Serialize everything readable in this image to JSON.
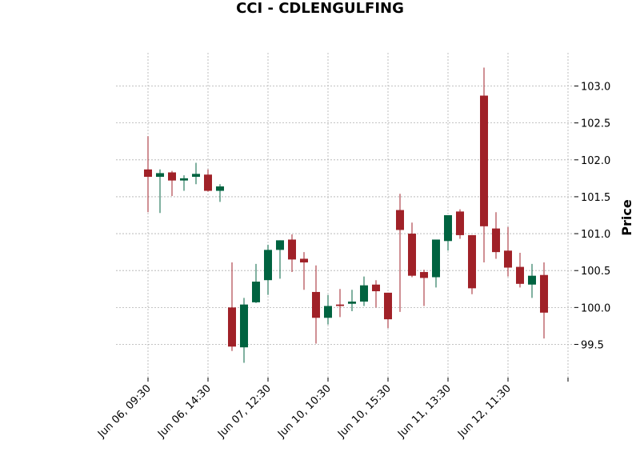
{
  "chart_data": {
    "type": "candlestick",
    "title": "CCI - CDLENGULFING",
    "xlabel": "",
    "ylabel": "Price",
    "ylim": [
      99.05,
      103.45
    ],
    "grid": true,
    "y_ticks": [
      99.5,
      100.0,
      100.5,
      101.0,
      101.5,
      102.0,
      102.5,
      103.0
    ],
    "y_tick_labels": [
      "99.5",
      "100.0",
      "100.5",
      "101.0",
      "101.5",
      "102.0",
      "102.5",
      "103.0"
    ],
    "x_ticks": [
      0,
      5,
      10,
      15,
      20,
      25,
      30,
      35
    ],
    "x_tick_labels": [
      "Jun 06, 09:30",
      "Jun 06, 14:30",
      "Jun 07, 12:30",
      "Jun 10, 10:30",
      "Jun 10, 15:30",
      "Jun 11, 13:30",
      "Jun 12, 11:30",
      ""
    ],
    "colors": {
      "up": "#006340",
      "down": "#a02128"
    },
    "candles": [
      {
        "i": 0,
        "open": 101.87,
        "high": 102.32,
        "low": 101.29,
        "close": 101.77
      },
      {
        "i": 1,
        "open": 101.77,
        "high": 101.87,
        "low": 101.28,
        "close": 101.82
      },
      {
        "i": 2,
        "open": 101.83,
        "high": 101.85,
        "low": 101.51,
        "close": 101.72
      },
      {
        "i": 3,
        "open": 101.72,
        "high": 101.79,
        "low": 101.58,
        "close": 101.75
      },
      {
        "i": 4,
        "open": 101.77,
        "high": 101.96,
        "low": 101.67,
        "close": 101.81
      },
      {
        "i": 5,
        "open": 101.8,
        "high": 101.87,
        "low": 101.57,
        "close": 101.58
      },
      {
        "i": 6,
        "open": 101.58,
        "high": 101.67,
        "low": 101.43,
        "close": 101.64
      },
      {
        "i": 7,
        "open": 100.0,
        "high": 100.61,
        "low": 99.41,
        "close": 99.47
      },
      {
        "i": 8,
        "open": 99.46,
        "high": 100.13,
        "low": 99.25,
        "close": 100.04
      },
      {
        "i": 9,
        "open": 100.07,
        "high": 100.59,
        "low": 100.06,
        "close": 100.35
      },
      {
        "i": 10,
        "open": 100.37,
        "high": 100.85,
        "low": 100.17,
        "close": 100.78
      },
      {
        "i": 11,
        "open": 100.78,
        "high": 100.91,
        "low": 100.39,
        "close": 100.91
      },
      {
        "i": 12,
        "open": 100.92,
        "high": 100.99,
        "low": 100.48,
        "close": 100.65
      },
      {
        "i": 13,
        "open": 100.66,
        "high": 100.75,
        "low": 100.24,
        "close": 100.61
      },
      {
        "i": 14,
        "open": 100.21,
        "high": 100.57,
        "low": 99.51,
        "close": 99.86
      },
      {
        "i": 15,
        "open": 99.86,
        "high": 100.17,
        "low": 99.77,
        "close": 100.02
      },
      {
        "i": 16,
        "open": 100.04,
        "high": 100.25,
        "low": 99.87,
        "close": 100.02
      },
      {
        "i": 17,
        "open": 100.05,
        "high": 100.24,
        "low": 99.95,
        "close": 100.08
      },
      {
        "i": 18,
        "open": 100.08,
        "high": 100.42,
        "low": 100.02,
        "close": 100.3
      },
      {
        "i": 19,
        "open": 100.31,
        "high": 100.37,
        "low": 100.0,
        "close": 100.22
      },
      {
        "i": 20,
        "open": 100.2,
        "high": 100.2,
        "low": 99.72,
        "close": 99.84
      },
      {
        "i": 21,
        "open": 101.32,
        "high": 101.54,
        "low": 99.94,
        "close": 101.05
      },
      {
        "i": 22,
        "open": 101.0,
        "high": 101.15,
        "low": 100.41,
        "close": 100.43
      },
      {
        "i": 23,
        "open": 100.48,
        "high": 100.51,
        "low": 100.02,
        "close": 100.4
      },
      {
        "i": 24,
        "open": 100.41,
        "high": 100.92,
        "low": 100.27,
        "close": 100.92
      },
      {
        "i": 25,
        "open": 100.9,
        "high": 101.25,
        "low": 100.77,
        "close": 101.25
      },
      {
        "i": 26,
        "open": 101.3,
        "high": 101.33,
        "low": 100.93,
        "close": 100.98
      },
      {
        "i": 27,
        "open": 100.98,
        "high": 100.98,
        "low": 100.18,
        "close": 100.26
      },
      {
        "i": 28,
        "open": 102.87,
        "high": 103.25,
        "low": 100.61,
        "close": 101.1
      },
      {
        "i": 29,
        "open": 101.07,
        "high": 101.29,
        "low": 100.66,
        "close": 100.75
      },
      {
        "i": 30,
        "open": 100.77,
        "high": 101.09,
        "low": 100.42,
        "close": 100.54
      },
      {
        "i": 31,
        "open": 100.55,
        "high": 100.74,
        "low": 100.27,
        "close": 100.32
      },
      {
        "i": 32,
        "open": 100.31,
        "high": 100.59,
        "low": 100.13,
        "close": 100.43
      },
      {
        "i": 33,
        "open": 100.44,
        "high": 100.61,
        "low": 99.58,
        "close": 99.93
      }
    ]
  }
}
